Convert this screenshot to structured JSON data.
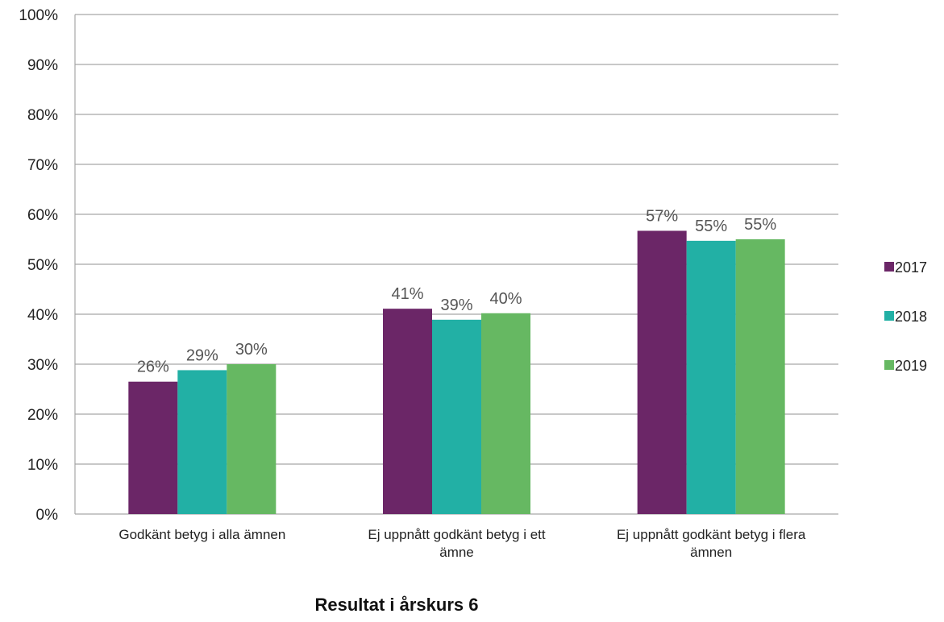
{
  "chart_data": {
    "type": "bar",
    "title": "Resultat i årskurs 6",
    "xlabel": "",
    "ylabel": "",
    "categories": [
      [
        "Godkänt betyg i alla ämnen"
      ],
      [
        "Ej uppnått godkänt betyg i ett",
        "ämne"
      ],
      [
        "Ej uppnått godkänt betyg i flera",
        "ämnen"
      ]
    ],
    "series": [
      {
        "name": "2017",
        "color": "#6B2667",
        "values": [
          26.5,
          41.1,
          56.7
        ],
        "labels": [
          "26%",
          "41%",
          "57%"
        ]
      },
      {
        "name": "2018",
        "color": "#22B0A5",
        "values": [
          28.8,
          38.9,
          54.7
        ],
        "labels": [
          "29%",
          "39%",
          "55%"
        ]
      },
      {
        "name": "2019",
        "color": "#66B862",
        "values": [
          30.0,
          40.2,
          55.0
        ],
        "labels": [
          "30%",
          "40%",
          "55%"
        ]
      }
    ],
    "ylim": [
      0,
      100
    ],
    "yticks": [
      0,
      10,
      20,
      30,
      40,
      50,
      60,
      70,
      80,
      90,
      100
    ],
    "ytick_labels": [
      "0%",
      "10%",
      "20%",
      "30%",
      "40%",
      "50%",
      "60%",
      "70%",
      "80%",
      "90%",
      "100%"
    ],
    "grid": true,
    "legend_position": "right"
  }
}
